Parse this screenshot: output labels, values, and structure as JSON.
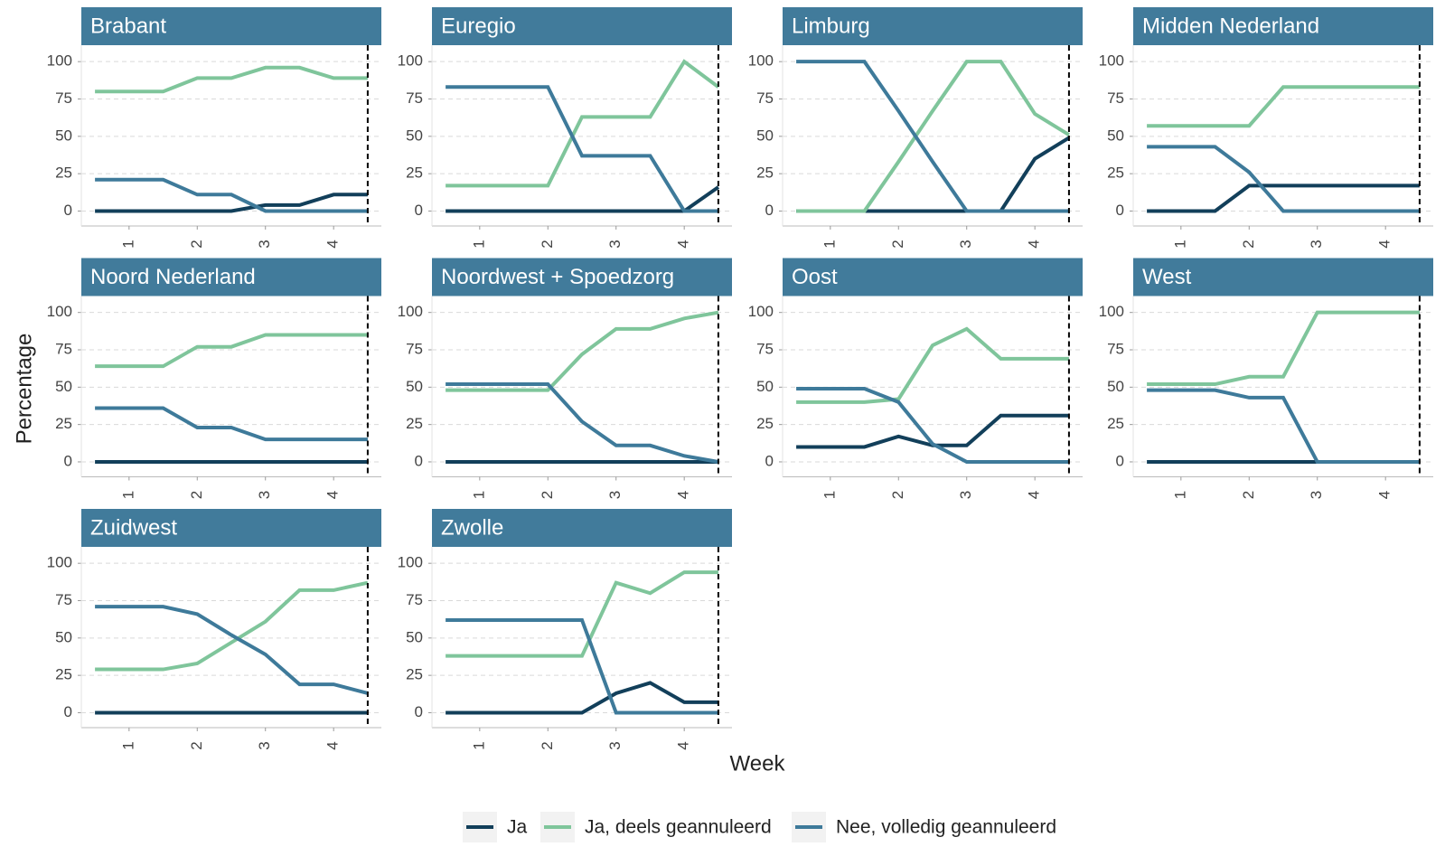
{
  "xlabel": "Week",
  "ylabel": "Percentage",
  "chart_data": [
    {
      "type": "line",
      "title": "Brabant",
      "x": [
        0.5,
        1,
        1.5,
        2,
        2.5,
        3,
        3.5,
        4,
        4.5
      ],
      "series": [
        {
          "name": "Ja",
          "color": "#123f5a",
          "values": [
            0,
            0,
            0,
            0,
            0,
            4,
            4,
            11,
            11
          ]
        },
        {
          "name": "Ja, deels geannuleerd",
          "color": "#7fc59b",
          "values": [
            80,
            80,
            80,
            89,
            89,
            96,
            96,
            89,
            89
          ]
        },
        {
          "name": "Nee, volledig geannuleerd",
          "color": "#3e7a9a",
          "values": [
            21,
            21,
            21,
            11,
            11,
            0,
            0,
            0,
            0
          ]
        }
      ],
      "xlim": [
        0.3,
        4.7
      ],
      "ylim": [
        -10,
        111
      ],
      "xticks": [
        1,
        2,
        3,
        4
      ],
      "yticks": [
        0,
        25,
        50,
        75,
        100
      ],
      "vline": 4.5,
      "grid": true
    },
    {
      "type": "line",
      "title": "Euregio",
      "x": [
        0.5,
        1,
        1.5,
        2,
        2.5,
        3,
        3.5,
        4,
        4.5
      ],
      "series": [
        {
          "name": "Ja",
          "color": "#123f5a",
          "values": [
            0,
            0,
            0,
            0,
            0,
            0,
            0,
            0,
            16
          ]
        },
        {
          "name": "Ja, deels geannuleerd",
          "color": "#7fc59b",
          "values": [
            17,
            17,
            17,
            17,
            63,
            63,
            63,
            100,
            83
          ]
        },
        {
          "name": "Nee, volledig geannuleerd",
          "color": "#3e7a9a",
          "values": [
            83,
            83,
            83,
            83,
            37,
            37,
            37,
            0,
            0
          ]
        }
      ],
      "xlim": [
        0.3,
        4.7
      ],
      "ylim": [
        -10,
        111
      ],
      "xticks": [
        1,
        2,
        3,
        4
      ],
      "yticks": [
        0,
        25,
        50,
        75,
        100
      ],
      "vline": 4.5,
      "grid": true
    },
    {
      "type": "line",
      "title": "Limburg",
      "x": [
        0.5,
        1,
        1.5,
        2,
        2.5,
        3,
        3.5,
        4,
        4.5
      ],
      "series": [
        {
          "name": "Ja",
          "color": "#123f5a",
          "values": [
            0,
            0,
            0,
            0,
            0,
            0,
            0,
            35,
            49
          ]
        },
        {
          "name": "Ja, deels geannuleerd",
          "color": "#7fc59b",
          "values": [
            0,
            0,
            0,
            33,
            67,
            100,
            100,
            65,
            51
          ]
        },
        {
          "name": "Nee, volledig geannuleerd",
          "color": "#3e7a9a",
          "values": [
            100,
            100,
            100,
            67,
            33,
            0,
            0,
            0,
            0
          ]
        }
      ],
      "xlim": [
        0.3,
        4.7
      ],
      "ylim": [
        -10,
        111
      ],
      "xticks": [
        1,
        2,
        3,
        4
      ],
      "yticks": [
        0,
        25,
        50,
        75,
        100
      ],
      "vline": 4.5,
      "grid": true
    },
    {
      "type": "line",
      "title": "Midden Nederland",
      "x": [
        0.5,
        1,
        1.5,
        2,
        2.5,
        3,
        3.5,
        4,
        4.5
      ],
      "series": [
        {
          "name": "Ja",
          "color": "#123f5a",
          "values": [
            0,
            0,
            0,
            17,
            17,
            17,
            17,
            17,
            17
          ]
        },
        {
          "name": "Ja, deels geannuleerd",
          "color": "#7fc59b",
          "values": [
            57,
            57,
            57,
            57,
            83,
            83,
            83,
            83,
            83
          ]
        },
        {
          "name": "Nee, volledig geannuleerd",
          "color": "#3e7a9a",
          "values": [
            43,
            43,
            43,
            26,
            0,
            0,
            0,
            0,
            0
          ]
        }
      ],
      "xlim": [
        0.3,
        4.7
      ],
      "ylim": [
        -10,
        111
      ],
      "xticks": [
        1,
        2,
        3,
        4
      ],
      "yticks": [
        0,
        25,
        50,
        75,
        100
      ],
      "vline": 4.5,
      "grid": true
    },
    {
      "type": "line",
      "title": "Noord Nederland",
      "x": [
        0.5,
        1,
        1.5,
        2,
        2.5,
        3,
        3.5,
        4,
        4.5
      ],
      "series": [
        {
          "name": "Ja",
          "color": "#123f5a",
          "values": [
            0,
            0,
            0,
            0,
            0,
            0,
            0,
            0,
            0
          ]
        },
        {
          "name": "Ja, deels geannuleerd",
          "color": "#7fc59b",
          "values": [
            64,
            64,
            64,
            77,
            77,
            85,
            85,
            85,
            85
          ]
        },
        {
          "name": "Nee, volledig geannuleerd",
          "color": "#3e7a9a",
          "values": [
            36,
            36,
            36,
            23,
            23,
            15,
            15,
            15,
            15
          ]
        }
      ],
      "xlim": [
        0.3,
        4.7
      ],
      "ylim": [
        -10,
        111
      ],
      "xticks": [
        1,
        2,
        3,
        4
      ],
      "yticks": [
        0,
        25,
        50,
        75,
        100
      ],
      "vline": 4.5,
      "grid": true
    },
    {
      "type": "line",
      "title": "Noordwest + Spoedzorg",
      "x": [
        0.5,
        1,
        1.5,
        2,
        2.5,
        3,
        3.5,
        4,
        4.5
      ],
      "series": [
        {
          "name": "Ja",
          "color": "#123f5a",
          "values": [
            0,
            0,
            0,
            0,
            0,
            0,
            0,
            0,
            0
          ]
        },
        {
          "name": "Ja, deels geannuleerd",
          "color": "#7fc59b",
          "values": [
            48,
            48,
            48,
            48,
            72,
            89,
            89,
            96,
            100
          ]
        },
        {
          "name": "Nee, volledig geannuleerd",
          "color": "#3e7a9a",
          "values": [
            52,
            52,
            52,
            52,
            27,
            11,
            11,
            4,
            0
          ]
        }
      ],
      "xlim": [
        0.3,
        4.7
      ],
      "ylim": [
        -10,
        111
      ],
      "xticks": [
        1,
        2,
        3,
        4
      ],
      "yticks": [
        0,
        25,
        50,
        75,
        100
      ],
      "vline": 4.5,
      "grid": true
    },
    {
      "type": "line",
      "title": "Oost",
      "x": [
        0.5,
        1,
        1.5,
        2,
        2.5,
        3,
        3.5,
        4,
        4.5
      ],
      "series": [
        {
          "name": "Ja",
          "color": "#123f5a",
          "values": [
            10,
            10,
            10,
            17,
            11,
            11,
            31,
            31,
            31
          ]
        },
        {
          "name": "Ja, deels geannuleerd",
          "color": "#7fc59b",
          "values": [
            40,
            40,
            40,
            42,
            78,
            89,
            69,
            69,
            69
          ]
        },
        {
          "name": "Nee, volledig geannuleerd",
          "color": "#3e7a9a",
          "values": [
            49,
            49,
            49,
            40,
            12,
            0,
            0,
            0,
            0
          ]
        }
      ],
      "xlim": [
        0.3,
        4.7
      ],
      "ylim": [
        -10,
        111
      ],
      "xticks": [
        1,
        2,
        3,
        4
      ],
      "yticks": [
        0,
        25,
        50,
        75,
        100
      ],
      "vline": 4.5,
      "grid": true
    },
    {
      "type": "line",
      "title": "West",
      "x": [
        0.5,
        1,
        1.5,
        2,
        2.5,
        3,
        3.5,
        4,
        4.5
      ],
      "series": [
        {
          "name": "Ja",
          "color": "#123f5a",
          "values": [
            0,
            0,
            0,
            0,
            0,
            0,
            0,
            0,
            0
          ]
        },
        {
          "name": "Ja, deels geannuleerd",
          "color": "#7fc59b",
          "values": [
            52,
            52,
            52,
            57,
            57,
            100,
            100,
            100,
            100
          ]
        },
        {
          "name": "Nee, volledig geannuleerd",
          "color": "#3e7a9a",
          "values": [
            48,
            48,
            48,
            43,
            43,
            0,
            0,
            0,
            0
          ]
        }
      ],
      "xlim": [
        0.3,
        4.7
      ],
      "ylim": [
        -10,
        111
      ],
      "xticks": [
        1,
        2,
        3,
        4
      ],
      "yticks": [
        0,
        25,
        50,
        75,
        100
      ],
      "vline": 4.5,
      "grid": true
    },
    {
      "type": "line",
      "title": "Zuidwest",
      "x": [
        0.5,
        1,
        1.5,
        2,
        2.5,
        3,
        3.5,
        4,
        4.5
      ],
      "series": [
        {
          "name": "Ja",
          "color": "#123f5a",
          "values": [
            0,
            0,
            0,
            0,
            0,
            0,
            0,
            0,
            0
          ]
        },
        {
          "name": "Ja, deels geannuleerd",
          "color": "#7fc59b",
          "values": [
            29,
            29,
            29,
            33,
            47,
            61,
            82,
            82,
            87
          ]
        },
        {
          "name": "Nee, volledig geannuleerd",
          "color": "#3e7a9a",
          "values": [
            71,
            71,
            71,
            66,
            52,
            39,
            19,
            19,
            13
          ]
        }
      ],
      "xlim": [
        0.3,
        4.7
      ],
      "ylim": [
        -10,
        111
      ],
      "xticks": [
        1,
        2,
        3,
        4
      ],
      "yticks": [
        0,
        25,
        50,
        75,
        100
      ],
      "vline": 4.5,
      "grid": true
    },
    {
      "type": "line",
      "title": "Zwolle",
      "x": [
        0.5,
        1,
        1.5,
        2,
        2.5,
        3,
        3.5,
        4,
        4.5
      ],
      "series": [
        {
          "name": "Ja",
          "color": "#123f5a",
          "values": [
            0,
            0,
            0,
            0,
            0,
            13,
            20,
            7,
            7
          ]
        },
        {
          "name": "Ja, deels geannuleerd",
          "color": "#7fc59b",
          "values": [
            38,
            38,
            38,
            38,
            38,
            87,
            80,
            94,
            94
          ]
        },
        {
          "name": "Nee, volledig geannuleerd",
          "color": "#3e7a9a",
          "values": [
            62,
            62,
            62,
            62,
            62,
            0,
            0,
            0,
            0
          ]
        }
      ],
      "xlim": [
        0.3,
        4.7
      ],
      "ylim": [
        -10,
        111
      ],
      "xticks": [
        1,
        2,
        3,
        4
      ],
      "yticks": [
        0,
        25,
        50,
        75,
        100
      ],
      "vline": 4.5,
      "grid": true
    }
  ]
}
